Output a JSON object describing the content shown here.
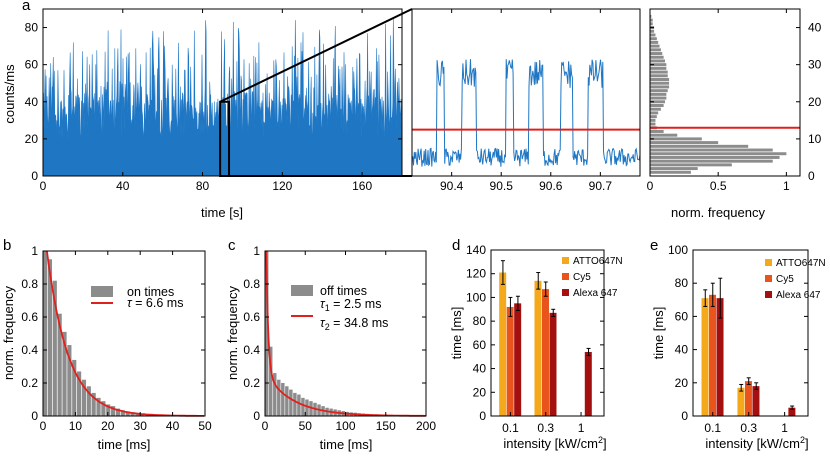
{
  "colors": {
    "trace_blue": "#1f77c4",
    "threshold_red": "#e0201c",
    "hist_gray": "#8c8c8c",
    "fit_red": "#e0201c",
    "atto647n": "#f4a91c",
    "cy5": "#e8541c",
    "alexa647": "#a4100f"
  },
  "panels": {
    "a": "a",
    "b": "b",
    "c": "c",
    "d": "d",
    "e": "e"
  },
  "chart_data": [
    {
      "panel": "a",
      "id": "trace-full",
      "type": "area",
      "xlabel": "time [s]",
      "ylabel": "counts/ms",
      "xlim": [
        0,
        180
      ],
      "ylim": [
        0,
        90
      ],
      "xticks": [
        0,
        40,
        80,
        120,
        160
      ],
      "yticks": [
        0,
        20,
        40,
        60,
        80
      ],
      "series": [
        {
          "baseline_level": 30,
          "typical_peak_range": [
            40,
            85
          ]
        }
      ],
      "zoom_window": [
        90.32,
        90.78
      ]
    },
    {
      "panel": "a",
      "id": "trace-zoom",
      "type": "line",
      "xlim": [
        90.32,
        90.78
      ],
      "ylim": [
        0,
        90
      ],
      "xticks": [
        90.4,
        90.5,
        90.6,
        90.7
      ],
      "threshold": 25,
      "on_intervals": [
        [
          90.37,
          90.385
        ],
        [
          90.42,
          90.45
        ],
        [
          90.51,
          90.525
        ],
        [
          90.555,
          90.585
        ],
        [
          90.62,
          90.645
        ],
        [
          90.675,
          90.705
        ]
      ],
      "on_level": 55,
      "off_level": 10
    },
    {
      "panel": "a",
      "id": "intensity-hist",
      "type": "bar",
      "orientation": "horizontal",
      "xlabel": "norm. frequency",
      "xlim": [
        0,
        1.1
      ],
      "ylim": [
        0,
        45
      ],
      "xticks": [
        0,
        0.5,
        1
      ],
      "xtick_labels": [
        "0",
        "0.5",
        "1"
      ],
      "yticks": [
        0,
        10,
        20,
        30,
        40
      ],
      "bins": [
        1,
        2,
        3,
        4,
        5,
        6,
        7,
        8,
        9,
        10,
        11,
        12,
        13,
        14,
        15,
        16,
        17,
        18,
        19,
        20,
        21,
        22,
        23,
        24,
        25,
        26,
        27,
        28,
        29,
        30,
        31,
        32,
        33,
        34,
        35,
        36,
        37,
        38,
        39,
        40,
        41,
        42,
        43
      ],
      "values": [
        0.3,
        0.35,
        0.6,
        0.9,
        0.95,
        1.0,
        0.9,
        0.72,
        0.5,
        0.38,
        0.2,
        0.1,
        0.05,
        0.04,
        0.04,
        0.05,
        0.06,
        0.08,
        0.1,
        0.11,
        0.12,
        0.12,
        0.13,
        0.14,
        0.14,
        0.14,
        0.13,
        0.13,
        0.12,
        0.12,
        0.11,
        0.1,
        0.09,
        0.08,
        0.07,
        0.06,
        0.05,
        0.04,
        0.03,
        0.03,
        0.02,
        0.02,
        0.01
      ],
      "threshold": 13
    },
    {
      "panel": "b",
      "id": "on-times",
      "type": "bar",
      "xlabel": "time [ms]",
      "ylabel": "norm. frequency",
      "xlim": [
        0,
        50
      ],
      "ylim": [
        0,
        1
      ],
      "xticks": [
        0,
        10,
        20,
        30,
        40,
        50
      ],
      "yticks": [
        0,
        0.2,
        0.4,
        0.6,
        0.8,
        1
      ],
      "ytick_labels": [
        "0",
        "0.2",
        "0.4",
        "0.6",
        "0.8",
        "1"
      ],
      "bin_width": 1.5,
      "values": [
        1.0,
        0.95,
        0.82,
        0.62,
        0.51,
        0.43,
        0.34,
        0.27,
        0.22,
        0.18,
        0.14,
        0.11,
        0.09,
        0.07,
        0.06,
        0.045,
        0.035,
        0.028,
        0.02,
        0.016,
        0.012,
        0.01,
        0.008,
        0.006,
        0.005,
        0.004,
        0.003,
        0.002,
        0.002,
        0.001
      ],
      "fit": {
        "label_prefix": "τ",
        "label": " = 6.6 ms",
        "tau": 6.6
      },
      "legend": "on times"
    },
    {
      "panel": "c",
      "id": "off-times",
      "type": "bar",
      "xlabel": "time [ms]",
      "ylabel": "norm. frequency",
      "xlim": [
        0,
        200
      ],
      "ylim": [
        0,
        1
      ],
      "xticks": [
        0,
        50,
        100,
        150,
        200
      ],
      "yticks": [
        0,
        0.2,
        0.4,
        0.6,
        0.8,
        1
      ],
      "ytick_labels": [
        "0",
        "0.2",
        "0.4",
        "0.6",
        "0.8",
        "1"
      ],
      "bin_width": 5,
      "values": [
        1.0,
        0.42,
        0.26,
        0.22,
        0.2,
        0.18,
        0.16,
        0.14,
        0.13,
        0.11,
        0.1,
        0.09,
        0.08,
        0.07,
        0.06,
        0.05,
        0.045,
        0.04,
        0.035,
        0.03,
        0.025,
        0.022,
        0.02,
        0.017,
        0.015,
        0.013,
        0.011,
        0.01,
        0.009,
        0.008
      ],
      "fit": {
        "tau1": 2.5,
        "tau2": 34.8,
        "label1": " =   2.5 ms",
        "label2": " = 34.8 ms",
        "sym1": "τ",
        "sub1": "1",
        "sym2": "τ",
        "sub2": "2"
      },
      "legend": "off times"
    },
    {
      "panel": "d",
      "id": "on-time-vs-intensity",
      "type": "bar",
      "xlabel": "intensity [kW/cm",
      "xlabel_sup": "2",
      "xlabel_end": "]",
      "ylabel": "time [ms]",
      "ylim": [
        0,
        140
      ],
      "yticks": [
        0,
        20,
        40,
        60,
        80,
        100,
        120,
        140
      ],
      "categories": [
        "0.1",
        "0.3",
        "1"
      ],
      "series": [
        {
          "name": "ATTO647N",
          "values": [
            121,
            114,
            null
          ],
          "errors": [
            10,
            7,
            null
          ]
        },
        {
          "name": "Cy5",
          "values": [
            92,
            107,
            null
          ],
          "errors": [
            8,
            6,
            null
          ]
        },
        {
          "name": "Alexa 647",
          "values": [
            95,
            87,
            54
          ],
          "errors": [
            6,
            3,
            3
          ]
        }
      ]
    },
    {
      "panel": "e",
      "id": "off-time-vs-intensity",
      "type": "bar",
      "xlabel": "intensity [kW/cm",
      "xlabel_sup": "2",
      "xlabel_end": "]",
      "ylabel": "time [ms]",
      "ylim": [
        0,
        100
      ],
      "yticks": [
        0,
        20,
        40,
        60,
        80,
        100
      ],
      "categories": [
        "0.1",
        "0.3",
        "1"
      ],
      "series": [
        {
          "name": "ATTO647N",
          "values": [
            71,
            17,
            null
          ],
          "errors": [
            5,
            2,
            null
          ]
        },
        {
          "name": "Cy5",
          "values": [
            73,
            21,
            null
          ],
          "errors": [
            7,
            2,
            null
          ]
        },
        {
          "name": "Alexa 647",
          "values": [
            71,
            18,
            5
          ],
          "errors": [
            12,
            2,
            1
          ]
        }
      ]
    }
  ]
}
